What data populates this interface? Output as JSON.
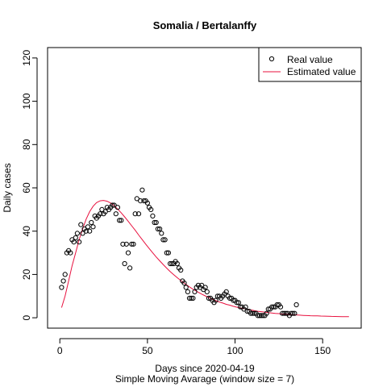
{
  "chart_data": {
    "type": "scatter",
    "title": "Somalia / Bertalanffy",
    "xlabel": "Days since 2020-04-19",
    "xlabel2": "Simple Moving Avarage (window size = 7)",
    "ylabel": "Daily cases",
    "xlim": [
      -7,
      172
    ],
    "ylim": [
      -4.8,
      124.8
    ],
    "xticks": [
      0,
      50,
      100,
      150
    ],
    "yticks": [
      0,
      20,
      40,
      60,
      80,
      100,
      120
    ],
    "grid": false,
    "legend": {
      "placement": "top-right",
      "entries": [
        "Real value",
        "Estimated value"
      ]
    },
    "colors": {
      "points": "#000000",
      "line": "#e8103e"
    },
    "series": [
      {
        "name": "Real value",
        "kind": "points",
        "x": [
          1,
          2,
          3,
          4,
          5,
          6,
          7,
          8,
          9,
          10,
          11,
          12,
          13,
          14,
          15,
          16,
          17,
          18,
          19,
          20,
          21,
          22,
          23,
          24,
          25,
          26,
          27,
          28,
          29,
          30,
          31,
          32,
          33,
          34,
          35,
          36,
          37,
          38,
          39,
          40,
          41,
          42,
          43,
          44,
          45,
          46,
          47,
          48,
          49,
          50,
          51,
          52,
          53,
          54,
          55,
          56,
          57,
          58,
          59,
          60,
          61,
          62,
          63,
          64,
          65,
          66,
          67,
          68,
          69,
          70,
          71,
          72,
          73,
          74,
          75,
          76,
          77,
          78,
          79,
          80,
          81,
          82,
          83,
          84,
          85,
          86,
          87,
          88,
          89,
          90,
          91,
          92,
          93,
          94,
          95,
          96,
          97,
          98,
          99,
          100,
          101,
          102,
          103,
          104,
          105,
          106,
          107,
          108,
          109,
          110,
          111,
          112,
          113,
          114,
          115,
          116,
          117,
          118,
          119,
          120,
          121,
          122,
          123,
          124,
          125,
          126,
          127,
          128,
          129,
          130,
          131,
          132,
          133,
          134,
          135
        ],
        "y": [
          14,
          17,
          20,
          30,
          31,
          30,
          36,
          35,
          37,
          39,
          35,
          43,
          39,
          41,
          40,
          42,
          40,
          44,
          42,
          47,
          46,
          47,
          48,
          50,
          48,
          49,
          51,
          50,
          51,
          52,
          52,
          48,
          51,
          45,
          45,
          34,
          25,
          34,
          30,
          23,
          34,
          34,
          48,
          55,
          48,
          54,
          59,
          54,
          54,
          53,
          51,
          50,
          47,
          44,
          44,
          41,
          41,
          39,
          36,
          36,
          30,
          30,
          25,
          25,
          25,
          26,
          25,
          23,
          22,
          17,
          16,
          14,
          12,
          9,
          9,
          9,
          12,
          14,
          15,
          14,
          15,
          13,
          14,
          12,
          9,
          9,
          8,
          7,
          8,
          10,
          10,
          9,
          10,
          11,
          12,
          10,
          9,
          9,
          8,
          8,
          7,
          7,
          5,
          5,
          4,
          5,
          3,
          3,
          2,
          2,
          2,
          2,
          1,
          1,
          1,
          1,
          1,
          2,
          4,
          4,
          5,
          5,
          5,
          6,
          6,
          5,
          2,
          2,
          2,
          2,
          1,
          2,
          2,
          2,
          6
        ]
      },
      {
        "name": "Estimated value",
        "kind": "line",
        "x": [
          1,
          3,
          5,
          7,
          9,
          11,
          13,
          15,
          17,
          19,
          21,
          23,
          25,
          27,
          29,
          31,
          33,
          35,
          37,
          39,
          41,
          43,
          45,
          47,
          49,
          51,
          53,
          55,
          57,
          59,
          61,
          63,
          65,
          67,
          69,
          71,
          73,
          75,
          77,
          79,
          81,
          83,
          85,
          87,
          89,
          91,
          93,
          95,
          97,
          99,
          101,
          103,
          105,
          107,
          109,
          111,
          113,
          115,
          117,
          119,
          121,
          123,
          125,
          127,
          129,
          131,
          133,
          135,
          137,
          139,
          141,
          143,
          145,
          147,
          149,
          151,
          153,
          155,
          157,
          159,
          161,
          163,
          165
        ],
        "y": [
          4.7,
          10,
          17,
          24,
          30,
          36,
          41,
          45.5,
          49,
          51.5,
          53.2,
          54,
          54.2,
          53.8,
          53,
          51.8,
          50.2,
          48.5,
          46.6,
          44.6,
          42.5,
          40.4,
          38.2,
          36.1,
          34,
          32,
          30,
          28.1,
          26.3,
          24.6,
          22.9,
          21.3,
          19.9,
          18.5,
          17.2,
          16,
          14.8,
          13.7,
          12.7,
          11.8,
          10.9,
          10.1,
          9.3,
          8.6,
          7.9,
          7.3,
          6.8,
          6.2,
          5.8,
          5.3,
          4.9,
          4.5,
          4.2,
          3.9,
          3.6,
          3.3,
          3.0,
          2.8,
          2.6,
          2.4,
          2.2,
          2.0,
          1.9,
          1.7,
          1.6,
          1.5,
          1.4,
          1.3,
          1.2,
          1.1,
          1.0,
          0.95,
          0.9,
          0.85,
          0.8,
          0.75,
          0.7,
          0.65,
          0.6,
          0.55,
          0.52,
          0.5,
          0.5
        ]
      }
    ]
  }
}
